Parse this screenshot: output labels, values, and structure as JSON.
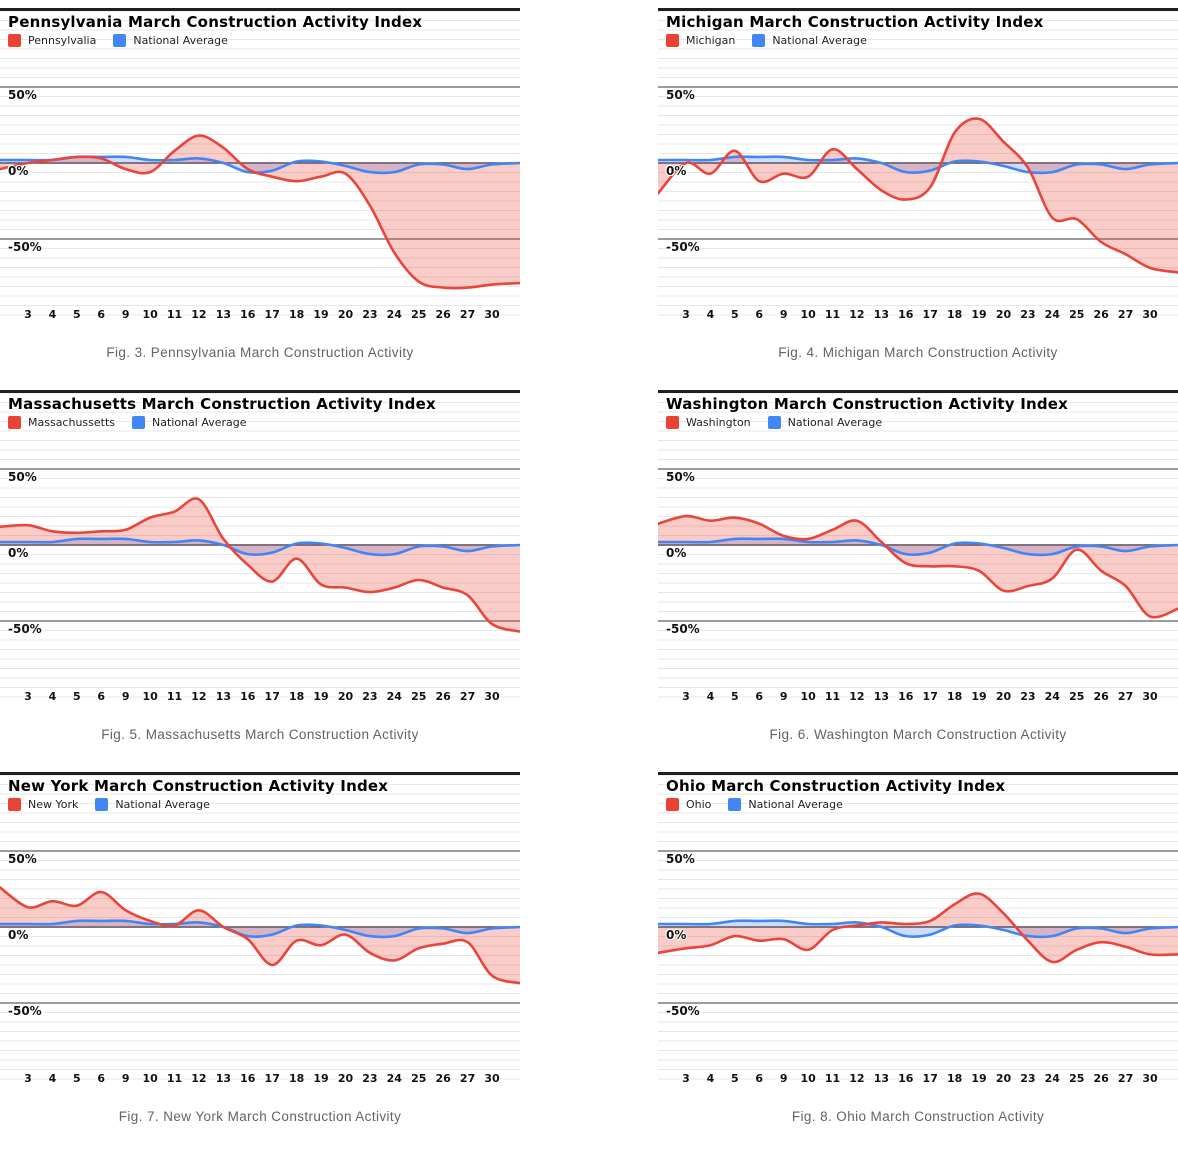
{
  "axis": {
    "x_labels": [
      "3",
      "4",
      "5",
      "6",
      "9",
      "10",
      "11",
      "12",
      "13",
      "16",
      "17",
      "18",
      "19",
      "20",
      "23",
      "24",
      "25",
      "26",
      "27",
      "30"
    ],
    "y_tick_labels": [
      "50%",
      "0%",
      "-50%"
    ],
    "y_tick_values": [
      50,
      0,
      -50
    ]
  },
  "colors": {
    "state_line": "#e8453c",
    "state_swatch": "#ea4335",
    "state_fill": "rgba(234,67,53,0.27)",
    "national_line": "#4285f4",
    "national_swatch": "#4285f4",
    "national_fill": "rgba(66,133,244,0.27)",
    "grid_minor": "#e7e7e7",
    "grid_major": "#9b9b9b",
    "grid_zero": "#4d4d4d",
    "top_border": "#1f1f1f",
    "caption_text": "#5f6368"
  },
  "chart_data": [
    {
      "type": "area",
      "title": "Pennsylvania March Construction Activity Index",
      "caption": "Fig. 3. Pennsylvania March Construction Activity",
      "legend": [
        "Pennsylvalia",
        "National Average"
      ],
      "categories": [
        "3",
        "4",
        "5",
        "6",
        "9",
        "10",
        "11",
        "12",
        "13",
        "16",
        "17",
        "18",
        "19",
        "20",
        "23",
        "24",
        "25",
        "26",
        "27",
        "30"
      ],
      "ylabel_ticks": [
        "50%",
        "0%",
        "-50%"
      ],
      "ylim": [
        -90,
        95
      ],
      "grid": true,
      "legend_position": "top-left",
      "series": [
        {
          "name": "Pennsylvalia",
          "role": "state",
          "lead_in": -4,
          "values": [
            0,
            2,
            4,
            3,
            -4,
            -6,
            8,
            18,
            10,
            -4,
            -9,
            -12,
            -9,
            -7,
            -28,
            -59,
            -78,
            -82,
            -82,
            -80
          ],
          "lead_out": -79
        },
        {
          "name": "National Average",
          "role": "national",
          "lead_in": 2,
          "values": [
            2,
            2,
            4,
            4,
            4,
            2,
            2,
            3,
            0,
            -6,
            -5,
            1,
            1,
            -2,
            -6,
            -6,
            -1,
            -1,
            -4,
            -1
          ],
          "lead_out": 0
        }
      ]
    },
    {
      "type": "area",
      "title": "Michigan March Construction Activity Index",
      "caption": "Fig. 4. Michigan March Construction Activity",
      "legend": [
        "Michigan",
        "National Average"
      ],
      "categories": [
        "3",
        "4",
        "5",
        "6",
        "9",
        "10",
        "11",
        "12",
        "13",
        "16",
        "17",
        "18",
        "19",
        "20",
        "23",
        "24",
        "25",
        "26",
        "27",
        "30"
      ],
      "ylabel_ticks": [
        "50%",
        "0%",
        "-50%"
      ],
      "ylim": [
        -90,
        95
      ],
      "grid": true,
      "legend_position": "top-left",
      "series": [
        {
          "name": "Michigan",
          "role": "state",
          "lead_in": -20,
          "values": [
            0,
            -7,
            8,
            -12,
            -7,
            -9,
            9,
            -4,
            -18,
            -24,
            -16,
            20,
            29,
            14,
            -3,
            -36,
            -37,
            -52,
            -60,
            -69
          ],
          "lead_out": -72
        },
        {
          "name": "National Average",
          "role": "national",
          "lead_in": 2,
          "values": [
            2,
            2,
            4,
            4,
            4,
            2,
            2,
            3,
            0,
            -6,
            -5,
            1,
            1,
            -2,
            -6,
            -6,
            -1,
            -1,
            -4,
            -1
          ],
          "lead_out": 0
        }
      ]
    },
    {
      "type": "area",
      "title": "Massachusetts March Construction Activity Index",
      "caption": "Fig. 5. Massachusetts March Construction Activity",
      "legend": [
        "Massachussetts",
        "National Average"
      ],
      "categories": [
        "3",
        "4",
        "5",
        "6",
        "9",
        "10",
        "11",
        "12",
        "13",
        "16",
        "17",
        "18",
        "19",
        "20",
        "23",
        "24",
        "25",
        "26",
        "27",
        "30"
      ],
      "ylabel_ticks": [
        "50%",
        "0%",
        "-50%"
      ],
      "ylim": [
        -90,
        95
      ],
      "grid": true,
      "legend_position": "top-left",
      "series": [
        {
          "name": "Massachussetts",
          "role": "state",
          "lead_in": 12,
          "values": [
            13,
            9,
            8,
            9,
            10,
            18,
            22,
            30,
            4,
            -13,
            -24,
            -9,
            -26,
            -28,
            -31,
            -28,
            -23,
            -28,
            -33,
            -52
          ],
          "lead_out": -57
        },
        {
          "name": "National Average",
          "role": "national",
          "lead_in": 2,
          "values": [
            2,
            2,
            4,
            4,
            4,
            2,
            2,
            3,
            0,
            -6,
            -5,
            1,
            1,
            -2,
            -6,
            -6,
            -1,
            -1,
            -4,
            -1
          ],
          "lead_out": 0
        }
      ]
    },
    {
      "type": "area",
      "title": "Washington March Construction Activity Index",
      "caption": "Fig. 6. Washington March Construction Activity",
      "legend": [
        "Washington",
        "National Average"
      ],
      "categories": [
        "3",
        "4",
        "5",
        "6",
        "9",
        "10",
        "11",
        "12",
        "13",
        "16",
        "17",
        "18",
        "19",
        "20",
        "23",
        "24",
        "25",
        "26",
        "27",
        "30"
      ],
      "ylabel_ticks": [
        "50%",
        "0%",
        "-50%"
      ],
      "ylim": [
        -90,
        95
      ],
      "grid": true,
      "legend_position": "top-left",
      "series": [
        {
          "name": "Washington",
          "role": "state",
          "lead_in": 14,
          "values": [
            19,
            16,
            18,
            14,
            6,
            4,
            10,
            16,
            2,
            -12,
            -14,
            -14,
            -17,
            -30,
            -27,
            -22,
            -3,
            -17,
            -27,
            -47
          ],
          "lead_out": -42
        },
        {
          "name": "National Average",
          "role": "national",
          "lead_in": 2,
          "values": [
            2,
            2,
            4,
            4,
            4,
            2,
            2,
            3,
            0,
            -6,
            -5,
            1,
            1,
            -2,
            -6,
            -6,
            -1,
            -1,
            -4,
            -1
          ],
          "lead_out": 0
        }
      ]
    },
    {
      "type": "area",
      "title": "New York March Construction Activity Index",
      "caption": "Fig. 7. New York March Construction Activity",
      "legend": [
        "New York",
        "National Average"
      ],
      "categories": [
        "3",
        "4",
        "5",
        "6",
        "9",
        "10",
        "11",
        "12",
        "13",
        "16",
        "17",
        "18",
        "19",
        "20",
        "23",
        "24",
        "25",
        "26",
        "27",
        "30"
      ],
      "ylabel_ticks": [
        "50%",
        "0%",
        "-50%"
      ],
      "ylim": [
        -90,
        95
      ],
      "grid": true,
      "legend_position": "top-left",
      "series": [
        {
          "name": "New York",
          "role": "state",
          "lead_in": 26,
          "values": [
            13,
            17,
            14,
            23,
            11,
            4,
            1,
            11,
            0,
            -8,
            -25,
            -9,
            -12,
            -5,
            -17,
            -22,
            -14,
            -11,
            -10,
            -32
          ],
          "lead_out": -37
        },
        {
          "name": "National Average",
          "role": "national",
          "lead_in": 2,
          "values": [
            2,
            2,
            4,
            4,
            4,
            2,
            2,
            3,
            0,
            -6,
            -5,
            1,
            1,
            -2,
            -6,
            -6,
            -1,
            -1,
            -4,
            -1
          ],
          "lead_out": 0
        }
      ]
    },
    {
      "type": "area",
      "title": "Ohio March Construction Activity Index",
      "caption": "Fig. 8. Ohio March Construction Activity",
      "legend": [
        "Ohio",
        "National Average"
      ],
      "categories": [
        "3",
        "4",
        "5",
        "6",
        "9",
        "10",
        "11",
        "12",
        "13",
        "16",
        "17",
        "18",
        "19",
        "20",
        "23",
        "24",
        "25",
        "26",
        "27",
        "30"
      ],
      "ylabel_ticks": [
        "50%",
        "0%",
        "-50%"
      ],
      "ylim": [
        -90,
        95
      ],
      "grid": true,
      "legend_position": "top-left",
      "series": [
        {
          "name": "Ohio",
          "role": "state",
          "lead_in": -17,
          "values": [
            -14,
            -12,
            -6,
            -9,
            -8,
            -15,
            -2,
            1,
            3,
            2,
            4,
            15,
            22,
            9,
            -9,
            -23,
            -15,
            -10,
            -13,
            -18
          ],
          "lead_out": -18
        },
        {
          "name": "National Average",
          "role": "national",
          "lead_in": 2,
          "values": [
            2,
            2,
            4,
            4,
            4,
            2,
            2,
            3,
            0,
            -6,
            -5,
            1,
            1,
            -2,
            -6,
            -6,
            -1,
            -1,
            -4,
            -1
          ],
          "lead_out": 0
        }
      ]
    }
  ]
}
